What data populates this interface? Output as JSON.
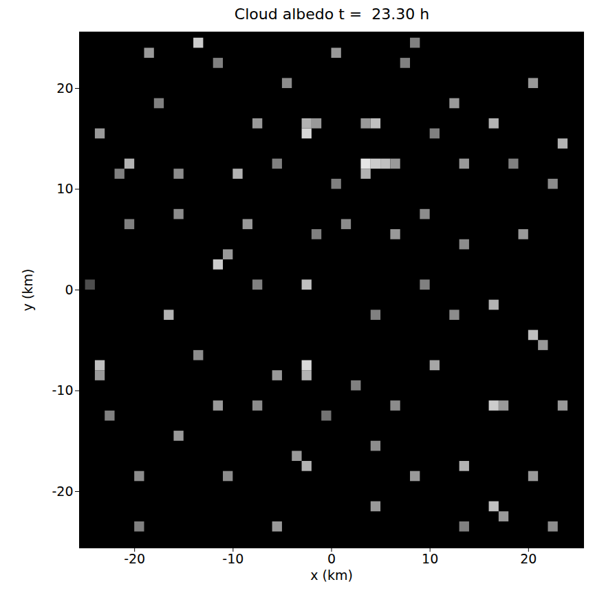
{
  "chart_data": {
    "type": "heatmap",
    "title": "Cloud albedo t =  23.30 h",
    "x_label": "x (km)",
    "y_label": "y (km)",
    "xlim": [
      -25.6,
      25.6
    ],
    "ylim": [
      -25.6,
      25.6
    ],
    "xticks": [
      -20,
      -10,
      0,
      10,
      20
    ],
    "yticks": [
      -20,
      -10,
      0,
      10,
      20
    ],
    "clim": [
      0,
      1
    ],
    "cell_size": 1,
    "cells": [
      [
        -14,
        24,
        0.8
      ],
      [
        -19,
        23,
        0.6
      ],
      [
        0,
        23,
        0.6
      ],
      [
        8,
        24,
        0.5
      ],
      [
        -3,
        15,
        0.85
      ],
      [
        -3,
        16,
        0.7
      ],
      [
        -2,
        16,
        0.6
      ],
      [
        4,
        16,
        0.75
      ],
      [
        3,
        16,
        0.6
      ],
      [
        3,
        12,
        0.9
      ],
      [
        4,
        12,
        0.8
      ],
      [
        3,
        11,
        0.7
      ],
      [
        5,
        12,
        0.75
      ],
      [
        6,
        12,
        0.6
      ],
      [
        -10,
        11,
        0.7
      ],
      [
        -21,
        12,
        0.7
      ],
      [
        -22,
        11,
        0.5
      ],
      [
        -24,
        15,
        0.6
      ],
      [
        -16,
        11,
        0.55
      ],
      [
        -12,
        2,
        0.8
      ],
      [
        -11,
        3,
        0.6
      ],
      [
        -3,
        0,
        0.75
      ],
      [
        -17,
        -3,
        0.7
      ],
      [
        -24,
        -8,
        0.75
      ],
      [
        -24,
        -9,
        0.6
      ],
      [
        -3,
        -8,
        0.85
      ],
      [
        -3,
        -9,
        0.7
      ],
      [
        -6,
        -9,
        0.6
      ],
      [
        2,
        -10,
        0.5
      ],
      [
        16,
        -12,
        0.8
      ],
      [
        17,
        -12,
        0.6
      ],
      [
        16,
        -2,
        0.7
      ],
      [
        20,
        -5,
        0.75
      ],
      [
        21,
        -6,
        0.6
      ],
      [
        -3,
        -18,
        0.7
      ],
      [
        -4,
        -17,
        0.6
      ],
      [
        4,
        -16,
        0.55
      ],
      [
        13,
        -18,
        0.7
      ],
      [
        16,
        -22,
        0.75
      ],
      [
        17,
        -23,
        0.6
      ],
      [
        -6,
        -24,
        0.6
      ],
      [
        6,
        -12,
        0.55
      ],
      [
        10,
        -8,
        0.65
      ],
      [
        6,
        5,
        0.6
      ],
      [
        9,
        7,
        0.55
      ],
      [
        13,
        12,
        0.6
      ],
      [
        16,
        16,
        0.7
      ],
      [
        23,
        14,
        0.7
      ],
      [
        22,
        10,
        0.55
      ],
      [
        18,
        12,
        0.5
      ],
      [
        12,
        18,
        0.6
      ],
      [
        7,
        22,
        0.5
      ],
      [
        -5,
        20,
        0.55
      ],
      [
        -8,
        16,
        0.6
      ],
      [
        -12,
        22,
        0.5
      ],
      [
        -21,
        6,
        0.5
      ],
      [
        -16,
        7,
        0.55
      ],
      [
        -9,
        6,
        0.6
      ],
      [
        -2,
        5,
        0.5
      ],
      [
        1,
        6,
        0.55
      ],
      [
        9,
        0,
        0.5
      ],
      [
        13,
        4,
        0.55
      ],
      [
        19,
        5,
        0.6
      ],
      [
        -14,
        -7,
        0.55
      ],
      [
        -12,
        -12,
        0.6
      ],
      [
        -8,
        -12,
        0.55
      ],
      [
        -16,
        -15,
        0.6
      ],
      [
        -20,
        -19,
        0.55
      ],
      [
        -23,
        -13,
        0.5
      ],
      [
        -11,
        -19,
        0.55
      ],
      [
        8,
        -19,
        0.6
      ],
      [
        4,
        -22,
        0.6
      ],
      [
        13,
        -24,
        0.5
      ],
      [
        20,
        -19,
        0.6
      ],
      [
        23,
        -12,
        0.6
      ],
      [
        22,
        -24,
        0.55
      ],
      [
        -8,
        0,
        0.5
      ],
      [
        4,
        -3,
        0.5
      ],
      [
        12,
        -3,
        0.55
      ],
      [
        -1,
        -13,
        0.45
      ],
      [
        0,
        10,
        0.5
      ],
      [
        10,
        15,
        0.5
      ],
      [
        -6,
        12,
        0.5
      ],
      [
        -18,
        18,
        0.5
      ],
      [
        20,
        20,
        0.6
      ],
      [
        -20,
        -24,
        0.5
      ],
      [
        -25,
        0,
        0.3
      ]
    ]
  }
}
